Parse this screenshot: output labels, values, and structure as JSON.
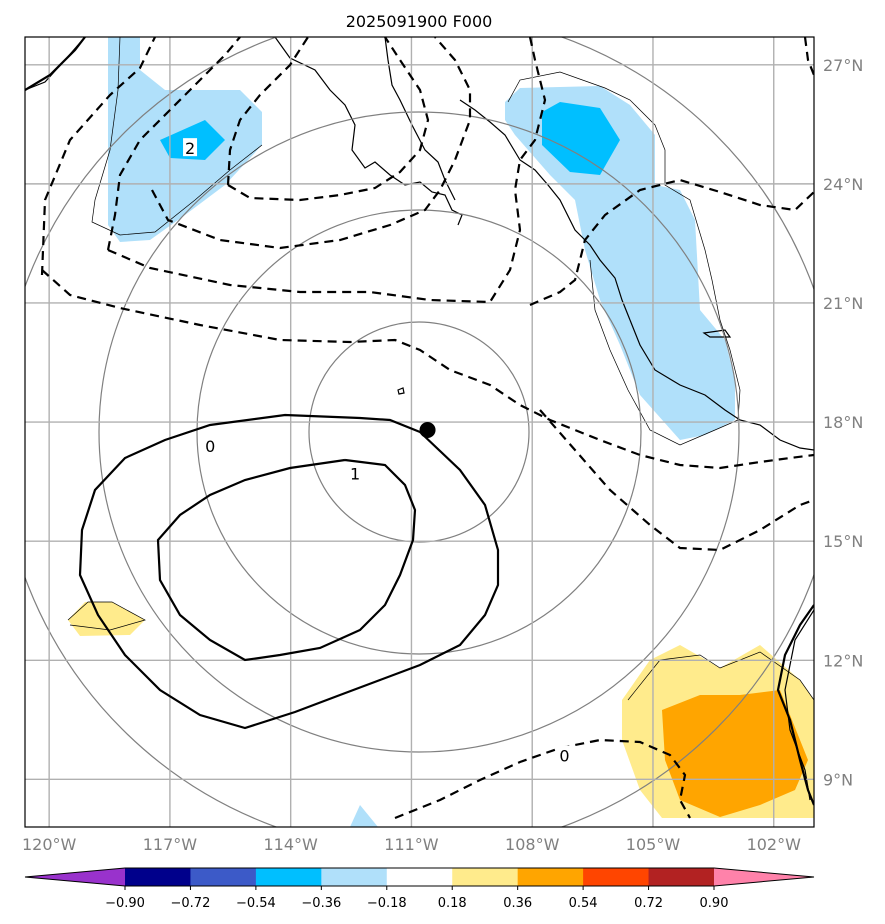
{
  "title": "2025091900 F000",
  "axes": {
    "lon_ticks": [
      {
        "value": -120,
        "label": "120°W"
      },
      {
        "value": -117,
        "label": "117°W"
      },
      {
        "value": -114,
        "label": "114°W"
      },
      {
        "value": -111,
        "label": "111°W"
      },
      {
        "value": -108,
        "label": "108°W"
      },
      {
        "value": -105,
        "label": "105°W"
      },
      {
        "value": -102,
        "label": "102°W"
      }
    ],
    "lat_ticks": [
      {
        "value": 27,
        "label": "27°N"
      },
      {
        "value": 24,
        "label": "24°N"
      },
      {
        "value": 21,
        "label": "21°N"
      },
      {
        "value": 18,
        "label": "18°N"
      },
      {
        "value": 15,
        "label": "15°N"
      },
      {
        "value": 12,
        "label": "12°N"
      },
      {
        "value": 9,
        "label": "9°N"
      }
    ],
    "lon_range": [
      -120.6,
      -101.0
    ],
    "lat_range": [
      7.8,
      27.7
    ],
    "grid": true
  },
  "storm_center": {
    "lon": -110.6,
    "lat": 17.8
  },
  "contour_labels": [
    {
      "text": "0",
      "lon": -116.0,
      "lat": 17.4
    },
    {
      "text": "1",
      "lon": -112.4,
      "lat": 16.7
    },
    {
      "text": "2",
      "lon": -116.5,
      "lat": 24.9
    },
    {
      "text": "0",
      "lon": -107.2,
      "lat": 9.6
    }
  ],
  "colorbar": {
    "colors": [
      "#9932cc",
      "#00008b",
      "#3c5ac8",
      "#00bfff",
      "#b0e0fa",
      "#ffffff",
      "#ffeb8c",
      "#ffa500",
      "#ff4500",
      "#b22222",
      "#ff82aa"
    ],
    "labels": [
      "−0.90",
      "−0.72",
      "−0.54",
      "−0.36",
      "−0.18",
      "0.18",
      "0.36",
      "0.54",
      "0.72",
      "0.90"
    ]
  }
}
